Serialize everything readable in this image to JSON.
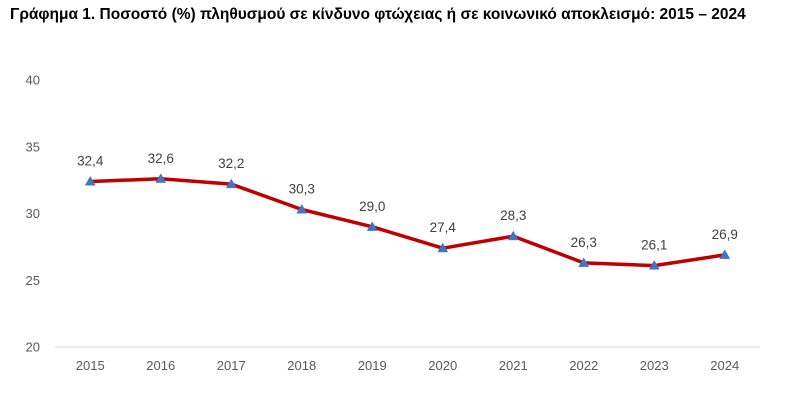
{
  "chart_data": {
    "type": "line",
    "title": "Γράφημα 1. Ποσοστό (%) πληθυσμού σε κίνδυνο φτώχειας ή σε κοινωνικό αποκλεισμό: 2015 – 2024",
    "categories": [
      "2015",
      "2016",
      "2017",
      "2018",
      "2019",
      "2020",
      "2021",
      "2022",
      "2023",
      "2024"
    ],
    "series": [
      {
        "values": [
          32.4,
          32.6,
          32.2,
          30.3,
          29.0,
          27.4,
          28.3,
          26.3,
          26.1,
          26.9
        ],
        "data_labels": [
          "32,4",
          "32,6",
          "32,2",
          "30,3",
          "29,0",
          "27,4",
          "28,3",
          "26,3",
          "26,1",
          "26,9"
        ],
        "line_color": "#C00000",
        "marker_color": "#4472C4",
        "marker": "triangle"
      }
    ],
    "ylim": [
      20,
      40
    ],
    "yticks": [
      20,
      25,
      30,
      35,
      40
    ],
    "grid": false,
    "legend": "none",
    "xlabel": "",
    "ylabel": ""
  }
}
